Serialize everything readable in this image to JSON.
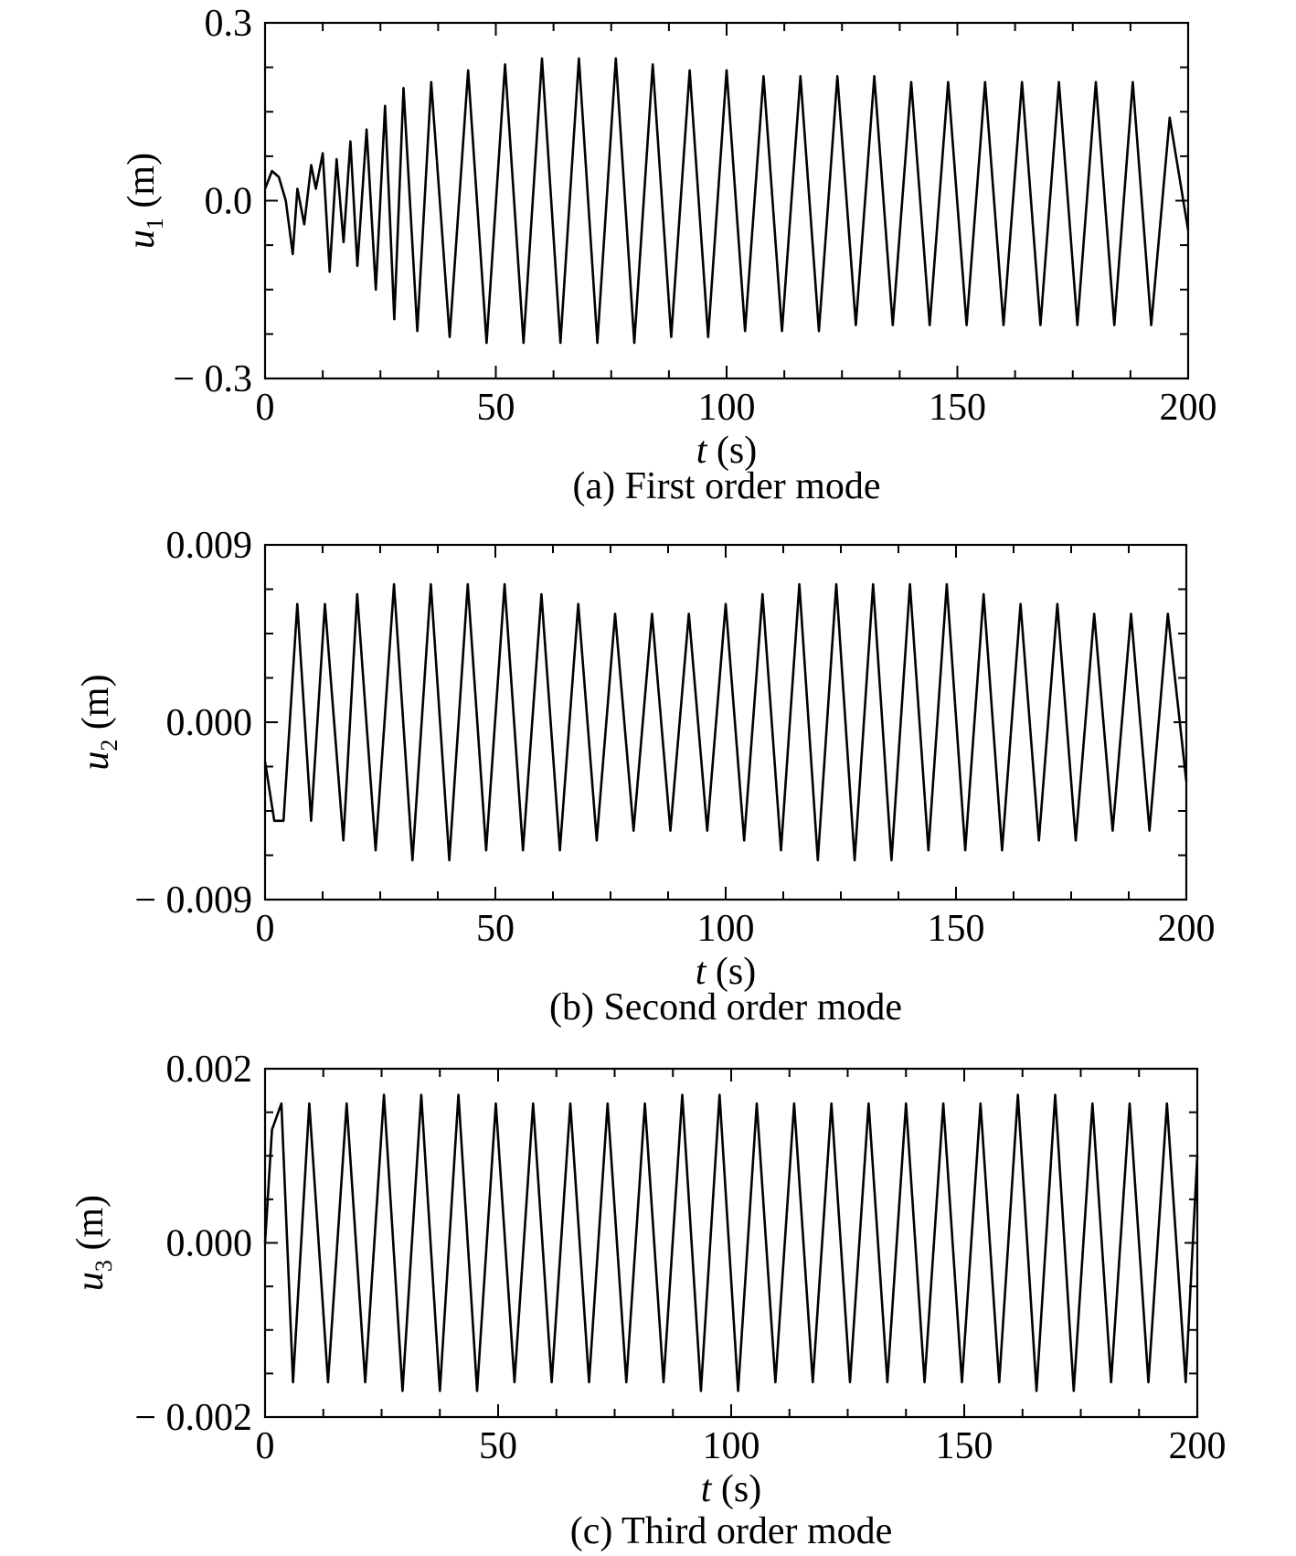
{
  "chart_data": [
    {
      "type": "line",
      "panel": "a",
      "caption": "(a) First order mode",
      "xlabel_var": "t",
      "xlabel_unit": " (s)",
      "ylabel_var": "u",
      "ylabel_sub": "1",
      "ylabel_unit": " (m)",
      "xlim": [
        0,
        200
      ],
      "ylim": [
        -0.3,
        0.3
      ],
      "xticks": [
        0,
        50,
        100,
        150,
        200
      ],
      "xtick_labels": [
        "0",
        "50",
        "100",
        "150",
        "200"
      ],
      "yticks": [
        -0.3,
        0.0,
        0.3
      ],
      "ytick_labels": [
        "− 0.3",
        "0.0",
        "0.3"
      ],
      "series": [
        {
          "description_only_numbers": true,
          "x": [
            0,
            1.5,
            3,
            4.5,
            6,
            7,
            8.5,
            10,
            11,
            12.5,
            14,
            15.5,
            17,
            18.5,
            20,
            22,
            24,
            26,
            28,
            30,
            33,
            36,
            40,
            44,
            48,
            52,
            56,
            60,
            64,
            68,
            72,
            76,
            80,
            84,
            88,
            92,
            96,
            100,
            104,
            108,
            112,
            116,
            120,
            124,
            128,
            132,
            136,
            140,
            144,
            148,
            152,
            156,
            160,
            164,
            168,
            172,
            176,
            180,
            184,
            188,
            192,
            196,
            200
          ],
          "y": [
            0.02,
            0.05,
            0.04,
            0.0,
            -0.09,
            0.02,
            -0.04,
            0.06,
            0.02,
            0.08,
            -0.12,
            0.07,
            -0.07,
            0.1,
            -0.11,
            0.12,
            -0.15,
            0.16,
            -0.2,
            0.19,
            -0.22,
            0.2,
            -0.23,
            0.22,
            -0.24,
            0.23,
            -0.24,
            0.24,
            -0.24,
            0.24,
            -0.24,
            0.24,
            -0.24,
            0.23,
            -0.23,
            0.22,
            -0.23,
            0.22,
            -0.22,
            0.21,
            -0.22,
            0.21,
            -0.22,
            0.21,
            -0.21,
            0.21,
            -0.21,
            0.2,
            -0.21,
            0.2,
            -0.21,
            0.2,
            -0.21,
            0.2,
            -0.21,
            0.2,
            -0.21,
            0.2,
            -0.21,
            0.2,
            -0.21,
            0.14,
            -0.05
          ]
        }
      ]
    },
    {
      "type": "line",
      "panel": "b",
      "caption": "(b) Second order mode",
      "xlabel_var": "t",
      "xlabel_unit": " (s)",
      "ylabel_var": "u",
      "ylabel_sub": "2",
      "ylabel_unit": " (m)",
      "xlim": [
        0,
        200
      ],
      "ylim": [
        -0.009,
        0.009
      ],
      "xticks": [
        0,
        50,
        100,
        150,
        200
      ],
      "xtick_labels": [
        "0",
        "50",
        "100",
        "150",
        "200"
      ],
      "yticks": [
        -0.009,
        0.0,
        0.009
      ],
      "ytick_labels": [
        "− 0.009",
        "0.000",
        "0.009"
      ],
      "series": [
        {
          "x": [
            0,
            2,
            4,
            7,
            10,
            13,
            17,
            20,
            24,
            28,
            32,
            36,
            40,
            44,
            48,
            52,
            56,
            60,
            64,
            68,
            72,
            76,
            80,
            84,
            88,
            92,
            96,
            100,
            104,
            108,
            112,
            116,
            120,
            124,
            128,
            132,
            136,
            140,
            144,
            148,
            152,
            156,
            160,
            164,
            168,
            172,
            176,
            180,
            184,
            188,
            192,
            196,
            200
          ],
          "y": [
            -0.002,
            -0.005,
            -0.005,
            0.006,
            -0.005,
            0.006,
            -0.006,
            0.0065,
            -0.0065,
            0.007,
            -0.007,
            0.007,
            -0.007,
            0.007,
            -0.0065,
            0.007,
            -0.0065,
            0.0065,
            -0.0065,
            0.006,
            -0.006,
            0.0055,
            -0.0055,
            0.0055,
            -0.0055,
            0.0055,
            -0.0055,
            0.006,
            -0.006,
            0.0065,
            -0.0065,
            0.007,
            -0.007,
            0.007,
            -0.007,
            0.007,
            -0.007,
            0.007,
            -0.0065,
            0.007,
            -0.0065,
            0.0065,
            -0.0065,
            0.006,
            -0.006,
            0.006,
            -0.006,
            0.0055,
            -0.0055,
            0.0055,
            -0.0055,
            0.0055,
            -0.003
          ]
        }
      ]
    },
    {
      "type": "line",
      "panel": "c",
      "caption": "(c) Third order mode",
      "xlabel_var": "t",
      "xlabel_unit": " (s)",
      "ylabel_var": "u",
      "ylabel_sub": "3",
      "ylabel_unit": " (m)",
      "xlim": [
        0,
        200
      ],
      "ylim": [
        -0.002,
        0.002
      ],
      "xticks": [
        0,
        50,
        100,
        150,
        200
      ],
      "xtick_labels": [
        "0",
        "50",
        "100",
        "150",
        "200"
      ],
      "yticks": [
        -0.002,
        0.0,
        0.002
      ],
      "ytick_labels": [
        "− 0.002",
        "0.000",
        "0.002"
      ],
      "series": [
        {
          "x": [
            0,
            1.5,
            3.5,
            6,
            9.5,
            13.5,
            17.5,
            21.5,
            25.5,
            29.5,
            33.5,
            37.5,
            41.5,
            45.5,
            49.5,
            53.5,
            57.5,
            61.5,
            65.5,
            69.5,
            73.5,
            77.5,
            81.5,
            85.5,
            89.5,
            93.5,
            97.5,
            101.5,
            105.5,
            109.5,
            113.5,
            117.5,
            121.5,
            125.5,
            129.5,
            133.5,
            137.5,
            141.5,
            145.5,
            149.5,
            153.5,
            157.5,
            161.5,
            165.5,
            169.5,
            173.5,
            177.5,
            181.5,
            185.5,
            189.5,
            193.5,
            197.5,
            200
          ],
          "y": [
            0.0,
            0.0013,
            0.0016,
            -0.0016,
            0.0016,
            -0.0016,
            0.0016,
            -0.0016,
            0.0017,
            -0.0017,
            0.0017,
            -0.0017,
            0.0017,
            -0.0017,
            0.0016,
            -0.0016,
            0.0016,
            -0.0016,
            0.0016,
            -0.0016,
            0.0016,
            -0.0016,
            0.0016,
            -0.0016,
            0.0017,
            -0.0017,
            0.0017,
            -0.0017,
            0.0016,
            -0.0016,
            0.0016,
            -0.0016,
            0.0016,
            -0.0016,
            0.0016,
            -0.0016,
            0.0016,
            -0.0016,
            0.0016,
            -0.0016,
            0.0016,
            -0.0016,
            0.0017,
            -0.0017,
            0.0017,
            -0.0017,
            0.0016,
            -0.0016,
            0.0016,
            -0.0016,
            0.0016,
            -0.0016,
            0.001
          ]
        }
      ]
    }
  ]
}
